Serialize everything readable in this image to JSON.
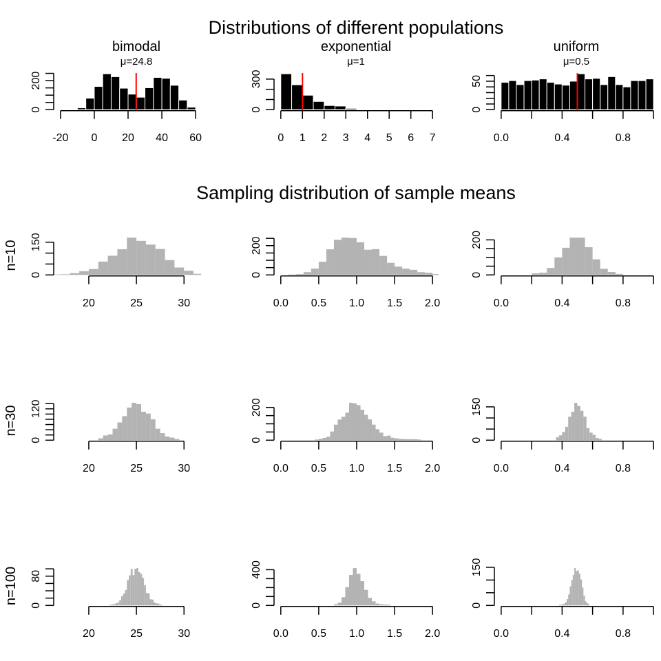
{
  "titles": {
    "populations": "Distributions of different populations",
    "sampling": "Sampling distribution of sample means"
  },
  "row_labels": [
    "",
    "n=10",
    "n=30",
    "n=100"
  ],
  "colors": {
    "population_bars": "#000000",
    "population_bar_border": "#ffffff",
    "sampling_bars": "#b3b3b3",
    "mean_line": "#ff0000",
    "axis": "#000000"
  },
  "chart_data": [
    {
      "type": "bar",
      "row": 0,
      "col": 0,
      "title": "bimodal",
      "subtitle": "μ=24.8",
      "mean": 24.8,
      "bin_start": -10,
      "bin_width": 5,
      "counts": [
        13,
        79,
        160,
        247,
        227,
        148,
        107,
        86,
        151,
        222,
        216,
        168,
        66,
        17
      ],
      "xlim": [
        -23.2,
        63.2
      ],
      "xticks": [
        -20,
        0,
        20,
        40,
        60
      ],
      "xtick_labels": [
        "-20",
        "0",
        "20",
        "40",
        "60"
      ],
      "yticks": [
        0,
        50,
        100,
        150,
        200,
        250
      ],
      "ytick_label_values": [
        0,
        200
      ],
      "ytick_labels": [
        "0",
        "200"
      ]
    },
    {
      "type": "bar",
      "row": 0,
      "col": 1,
      "title": "exponential",
      "subtitle": "μ=1",
      "mean": 1,
      "bin_start": 0,
      "bin_width": 0.5,
      "counts": [
        352,
        244,
        142,
        81,
        41,
        36,
        13
      ],
      "xlim": [
        -0.28,
        7.28
      ],
      "xticks": [
        0,
        1,
        2,
        3,
        4,
        5,
        6,
        7
      ],
      "xtick_labels": [
        "0",
        "1",
        "2",
        "3",
        "4",
        "5",
        "6",
        "7"
      ],
      "yticks": [
        0,
        100,
        200,
        300
      ],
      "ytick_label_values": [
        0,
        300
      ],
      "ytick_labels": [
        "0",
        "300"
      ]
    },
    {
      "type": "bar",
      "row": 0,
      "col": 2,
      "title": "uniform",
      "subtitle": "μ=0.5",
      "mean": 0.5,
      "bin_start": 0,
      "bin_width": 0.05,
      "counts": [
        48,
        51,
        44,
        51,
        52,
        54,
        48,
        45,
        43,
        50,
        63,
        54,
        55,
        44,
        58,
        44,
        40,
        51,
        51,
        54
      ],
      "xlim": [
        -0.04,
        1.04
      ],
      "xticks": [
        0,
        0.2,
        0.4,
        0.6,
        0.8,
        1.0
      ],
      "xtick_label_values": [
        0,
        0.4,
        0.8
      ],
      "xtick_labels": [
        "0.0",
        "0.4",
        "0.8"
      ],
      "yticks": [
        0,
        10,
        20,
        30,
        40,
        50,
        60
      ],
      "ytick_label_values": [
        0,
        50
      ],
      "ytick_labels": [
        "0",
        "50"
      ]
    },
    {
      "type": "bar",
      "row": 1,
      "col": 0,
      "bin_start": 16,
      "bin_width": 1,
      "counts": [
        2,
        3,
        8,
        17,
        27,
        61,
        88,
        118,
        171,
        156,
        139,
        119,
        68,
        34,
        19,
        5
      ],
      "xlim": [
        16.46,
        31.79
      ],
      "xticks": [
        20,
        25,
        30
      ],
      "xtick_labels": [
        "20",
        "25",
        "30"
      ],
      "yticks": [
        0,
        50,
        100,
        150
      ],
      "ytick_label_values": [
        0,
        150
      ],
      "ytick_labels": [
        "0",
        "150"
      ]
    },
    {
      "type": "bar",
      "row": 1,
      "col": 1,
      "bin_start": 0.1,
      "bin_width": 0.1,
      "counts": [
        3,
        6,
        19,
        43,
        90,
        175,
        240,
        255,
        252,
        223,
        172,
        176,
        130,
        83,
        57,
        43,
        35,
        19,
        15,
        6
      ],
      "xlim": [
        -0.08,
        2.08
      ],
      "xticks": [
        0,
        0.5,
        1.0,
        1.5,
        2.0
      ],
      "xtick_labels": [
        "0.0",
        "0.5",
        "1.0",
        "1.5",
        "2.0"
      ],
      "yticks": [
        0,
        50,
        100,
        150,
        200,
        250
      ],
      "ytick_label_values": [
        0,
        200
      ],
      "ytick_labels": [
        "0",
        "200"
      ]
    },
    {
      "type": "bar",
      "row": 1,
      "col": 2,
      "bin_start": 0.2,
      "bin_width": 0.05,
      "counts": [
        9,
        13,
        40,
        100,
        155,
        213,
        213,
        158,
        89,
        35,
        17,
        6
      ],
      "xlim": [
        -0.04,
        1.04
      ],
      "xticks": [
        0,
        0.2,
        0.4,
        0.6,
        0.8,
        1.0
      ],
      "xtick_label_values": [
        0,
        0.4,
        0.8
      ],
      "xtick_labels": [
        "0.0",
        "0.4",
        "0.8"
      ],
      "yticks": [
        0,
        50,
        100,
        150,
        200
      ],
      "ytick_label_values": [
        0,
        200
      ],
      "ytick_labels": [
        "0",
        "200"
      ]
    },
    {
      "type": "bar",
      "row": 2,
      "col": 0,
      "bin_start": 21,
      "bin_width": 0.5,
      "counts": [
        7,
        18,
        22,
        44,
        68,
        92,
        125,
        143,
        138,
        109,
        102,
        80,
        44,
        27,
        14,
        10,
        4
      ],
      "xlim": [
        16.46,
        31.79
      ],
      "xticks": [
        20,
        25,
        30
      ],
      "xtick_labels": [
        "20",
        "25",
        "30"
      ],
      "yticks": [
        0,
        20,
        40,
        60,
        80,
        100,
        120,
        140
      ],
      "ytick_label_values": [
        0,
        120
      ],
      "ytick_labels": [
        "0",
        "120"
      ]
    },
    {
      "type": "bar",
      "row": 2,
      "col": 1,
      "bin_start": 0.45,
      "bin_width": 0.05,
      "counts": [
        4,
        8,
        14,
        21,
        53,
        95,
        126,
        143,
        168,
        228,
        225,
        214,
        186,
        155,
        127,
        95,
        67,
        46,
        25,
        28,
        15,
        11,
        8,
        7,
        6,
        6,
        6,
        4
      ],
      "xlim": [
        -0.08,
        2.08
      ],
      "xticks": [
        0,
        0.5,
        1.0,
        1.5,
        2.0
      ],
      "xtick_labels": [
        "0.0",
        "0.5",
        "1.0",
        "1.5",
        "2.0"
      ],
      "yticks": [
        0,
        50,
        100,
        150,
        200
      ],
      "ytick_label_values": [
        0,
        200
      ],
      "ytick_labels": [
        "0",
        "200"
      ]
    },
    {
      "type": "bar",
      "row": 2,
      "col": 2,
      "bin_start": 0.36,
      "bin_width": 0.02,
      "counts": [
        13,
        22,
        37,
        60,
        106,
        128,
        168,
        154,
        132,
        106,
        54,
        34,
        24,
        10,
        6
      ],
      "xlim": [
        -0.04,
        1.04
      ],
      "xticks": [
        0,
        0.2,
        0.4,
        0.6,
        0.8,
        1.0
      ],
      "xtick_label_values": [
        0,
        0.4,
        0.8
      ],
      "xtick_labels": [
        "0.0",
        "0.4",
        "0.8"
      ],
      "yticks": [
        0,
        50,
        100,
        150
      ],
      "ytick_label_values": [
        0,
        150
      ],
      "ytick_labels": [
        "0",
        "150"
      ]
    },
    {
      "type": "bar",
      "row": 3,
      "col": 0,
      "bin_start": 22.2,
      "bin_width": 0.2,
      "counts": [
        2,
        3,
        4,
        6,
        8,
        14,
        25,
        32,
        42,
        69,
        82,
        100,
        83,
        100,
        102,
        91,
        86,
        75,
        55,
        34,
        33,
        17,
        16,
        8,
        6,
        5,
        3,
        1
      ],
      "xlim": [
        16.46,
        31.79
      ],
      "xticks": [
        20,
        25,
        30
      ],
      "xtick_labels": [
        "20",
        "25",
        "30"
      ],
      "yticks": [
        0,
        20,
        40,
        60,
        80,
        100
      ],
      "ytick_label_values": [
        0,
        80
      ],
      "ytick_labels": [
        "0",
        "80"
      ]
    },
    {
      "type": "bar",
      "row": 3,
      "col": 1,
      "bin_start": 0.7,
      "bin_width": 0.05,
      "counts": [
        13,
        31,
        92,
        205,
        341,
        418,
        354,
        272,
        174,
        85,
        46,
        21,
        13,
        10,
        8
      ],
      "xlim": [
        -0.08,
        2.08
      ],
      "xticks": [
        0,
        0.5,
        1.0,
        1.5,
        2.0
      ],
      "xtick_labels": [
        "0.0",
        "0.5",
        "1.0",
        "1.5",
        "2.0"
      ],
      "yticks": [
        0,
        100,
        200,
        300,
        400
      ],
      "ytick_label_values": [
        0,
        400
      ],
      "ytick_labels": [
        "0",
        "400"
      ]
    },
    {
      "type": "bar",
      "row": 3,
      "col": 2,
      "bin_start": 0.38,
      "bin_width": 0.01,
      "counts": [
        3,
        3,
        5,
        7,
        12,
        25,
        43,
        75,
        100,
        120,
        147,
        135,
        138,
        125,
        102,
        70,
        39,
        16,
        9,
        5
      ],
      "xlim": [
        -0.04,
        1.04
      ],
      "xticks": [
        0,
        0.2,
        0.4,
        0.6,
        0.8,
        1.0
      ],
      "xtick_label_values": [
        0,
        0.4,
        0.8
      ],
      "xtick_labels": [
        "0.0",
        "0.4",
        "0.8"
      ],
      "yticks": [
        0,
        50,
        100,
        150
      ],
      "ytick_label_values": [
        0,
        150
      ],
      "ytick_labels": [
        "0",
        "150"
      ]
    }
  ]
}
